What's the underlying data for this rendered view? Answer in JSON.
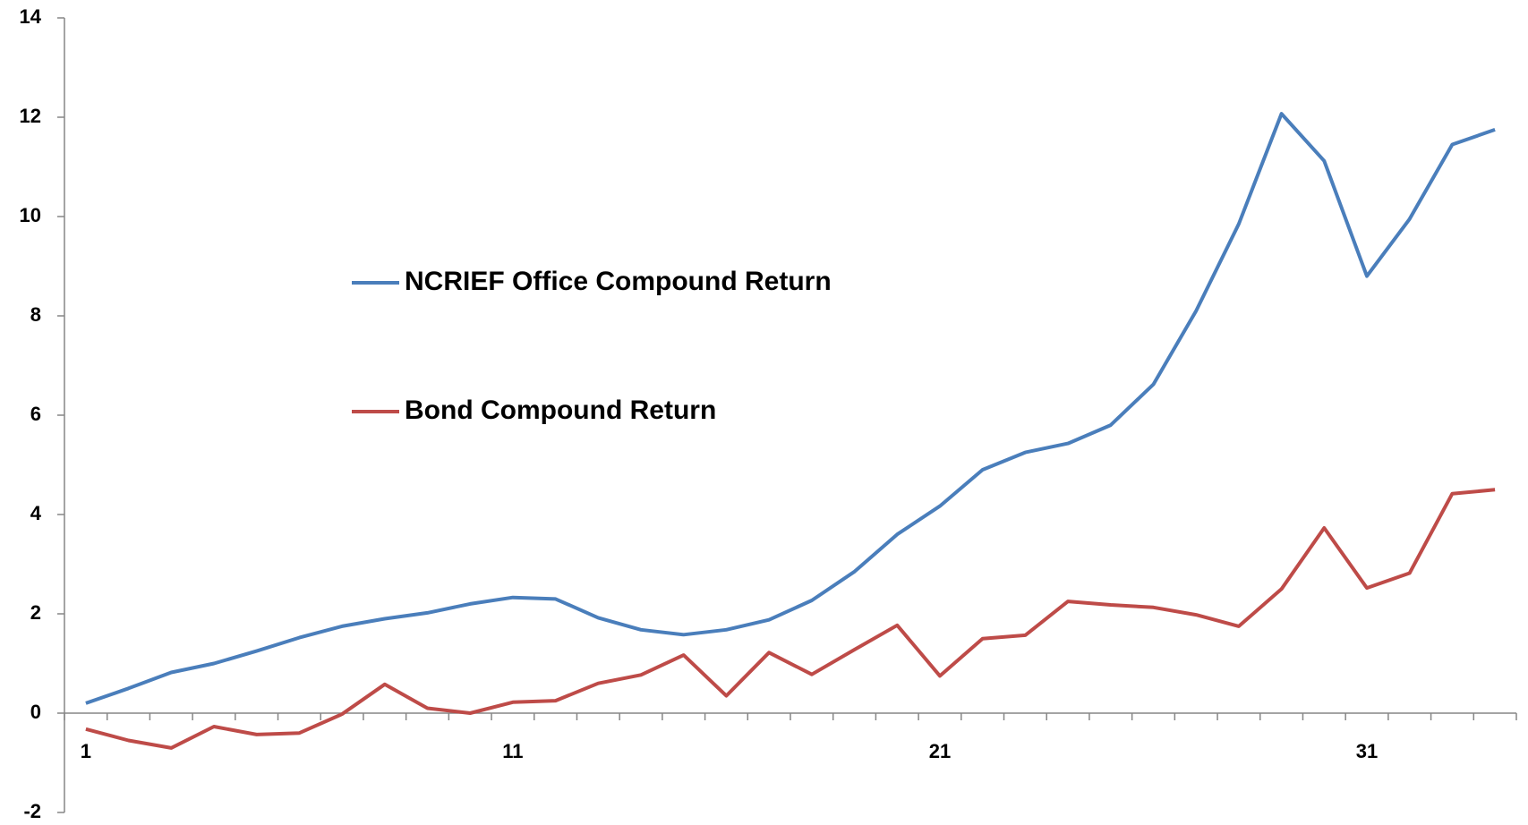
{
  "chart_data": {
    "type": "line",
    "categories": [
      1,
      null,
      null,
      null,
      null,
      null,
      null,
      null,
      null,
      null,
      11,
      null,
      null,
      null,
      null,
      null,
      null,
      null,
      null,
      null,
      21,
      null,
      null,
      null,
      null,
      null,
      null,
      null,
      null,
      null,
      31,
      null,
      null,
      null
    ],
    "series": [
      {
        "name": "NCRIEF Office Compound Return",
        "color": "#4a7ebb",
        "values": [
          0.2,
          0.5,
          0.82,
          1.0,
          1.25,
          1.52,
          1.75,
          1.9,
          2.02,
          2.2,
          2.33,
          2.3,
          1.92,
          1.68,
          1.58,
          1.68,
          1.88,
          2.27,
          2.85,
          3.6,
          4.17,
          4.9,
          5.25,
          5.43,
          5.8,
          6.62,
          8.1,
          9.85,
          12.07,
          11.12,
          8.8,
          9.95,
          11.45,
          11.75
        ]
      },
      {
        "name": "Bond Compound Return",
        "color": "#be4b48",
        "values": [
          -0.32,
          -0.55,
          -0.7,
          -0.27,
          -0.43,
          -0.4,
          -0.02,
          0.58,
          0.1,
          0.0,
          0.22,
          0.25,
          0.6,
          0.77,
          1.17,
          0.35,
          1.22,
          0.78,
          1.28,
          1.77,
          0.75,
          1.5,
          1.57,
          2.25,
          2.18,
          2.13,
          1.98,
          1.75,
          2.5,
          3.73,
          2.52,
          2.82,
          4.42,
          4.5
        ]
      }
    ],
    "ylim": [
      -2,
      14
    ],
    "yticks": [
      -2,
      0,
      2,
      4,
      6,
      8,
      10,
      12,
      14
    ],
    "grid": false
  }
}
